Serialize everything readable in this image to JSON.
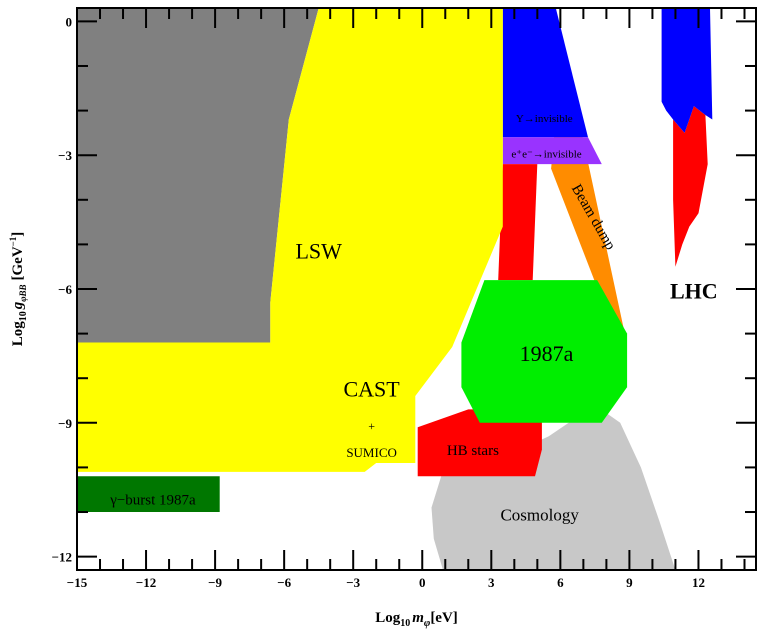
{
  "chart_data": {
    "type": "area",
    "title": "",
    "xlabel": "Log",
    "xlabel_sub": "10",
    "xlabel_var": "m",
    "xlabel_sym": "φ",
    "xlabel_unit": "[eV]",
    "ylabel": "Log",
    "ylabel_sub": "10",
    "ylabel_var": "g",
    "ylabel_sym": "φBB",
    "ylabel_unit": "[GeV",
    "ylabel_exp": "−1",
    "ylabel_close": "]",
    "xlim": [
      -15,
      14.5
    ],
    "ylim": [
      -12.3,
      0.3
    ],
    "xticks": [
      {
        "v": -15,
        "label": "−15"
      },
      {
        "v": -12,
        "label": "−12"
      },
      {
        "v": -9,
        "label": "−9"
      },
      {
        "v": -6,
        "label": "−6"
      },
      {
        "v": -3,
        "label": "−3"
      },
      {
        "v": 0,
        "label": "0"
      },
      {
        "v": 3,
        "label": "3"
      },
      {
        "v": 6,
        "label": "6"
      },
      {
        "v": 9,
        "label": "9"
      },
      {
        "v": 12,
        "label": "12"
      }
    ],
    "yticks": [
      {
        "v": 0,
        "label": "0"
      },
      {
        "v": -3,
        "label": "−3"
      },
      {
        "v": -6,
        "label": "−6"
      },
      {
        "v": -9,
        "label": "−9"
      },
      {
        "v": -12,
        "label": "−12"
      }
    ],
    "grid": false,
    "legend": "none",
    "regions": [
      {
        "id": "cosmology",
        "color": "#c8c8c8",
        "points": [
          [
            0.4,
            -10.9
          ],
          [
            1,
            -9.9
          ],
          [
            3,
            -9.9
          ],
          [
            5.5,
            -9.3
          ],
          [
            7.5,
            -8.6
          ],
          [
            8.6,
            -9.0
          ],
          [
            9.5,
            -10.0
          ],
          [
            10.3,
            -11.2
          ],
          [
            11.0,
            -12.3
          ],
          [
            0.9,
            -12.3
          ],
          [
            0.5,
            -11.6
          ]
        ]
      },
      {
        "id": "lsw",
        "color": "#808080",
        "points": [
          [
            -15,
            0.3
          ],
          [
            -4.5,
            0.3
          ],
          [
            -5.8,
            -2.2
          ],
          [
            -6.6,
            -6.3
          ],
          [
            -6.6,
            -7.2
          ],
          [
            -15,
            -7.2
          ]
        ]
      },
      {
        "id": "beam-dump",
        "color": "#ff8c00",
        "points": [
          [
            5.8,
            -2.2
          ],
          [
            6.8,
            -2.2
          ],
          [
            8.8,
            -7.0
          ],
          [
            8.6,
            -7.3
          ],
          [
            5.6,
            -3.3
          ]
        ]
      },
      {
        "id": "upsilon-invisible",
        "color": "#0000ff",
        "points": [
          [
            3.5,
            0.3
          ],
          [
            5.8,
            0.3
          ],
          [
            7.2,
            -2.6
          ],
          [
            3.5,
            -2.6
          ]
        ]
      },
      {
        "id": "ee-invisible",
        "color": "#9933ff",
        "points": [
          [
            3.5,
            -2.6
          ],
          [
            7.2,
            -2.6
          ],
          [
            7.8,
            -3.2
          ],
          [
            3.5,
            -3.2
          ]
        ]
      },
      {
        "id": "red-exclusion",
        "color": "#ff0000",
        "points": [
          [
            3.5,
            -3.2
          ],
          [
            5.0,
            -3.2
          ],
          [
            4.8,
            -5.8
          ],
          [
            3.3,
            -5.8
          ]
        ]
      },
      {
        "id": "hb-stars",
        "color": "#ff0000",
        "points": [
          [
            -0.2,
            -9.1
          ],
          [
            2.0,
            -8.7
          ],
          [
            5.2,
            -8.7
          ],
          [
            5.2,
            -9.6
          ],
          [
            4.9,
            -10.2
          ],
          [
            -0.2,
            -10.2
          ]
        ]
      },
      {
        "id": "cast-sumico",
        "color": "#ffff00",
        "points": [
          [
            -15,
            -7.2
          ],
          [
            -6.6,
            -7.2
          ],
          [
            -6.6,
            -6.3
          ],
          [
            -5.8,
            -2.2
          ],
          [
            -4.5,
            0.3
          ],
          [
            3.5,
            0.3
          ],
          [
            3.5,
            -4.6
          ],
          [
            1.3,
            -7.3
          ],
          [
            -0.3,
            -8.4
          ],
          [
            -0.3,
            -9.9
          ],
          [
            -2.0,
            -9.9
          ],
          [
            -2.5,
            -10.1
          ],
          [
            -15,
            -10.1
          ]
        ]
      },
      {
        "id": "sn1987a",
        "color": "#00ee00",
        "points": [
          [
            2.7,
            -5.8
          ],
          [
            7.6,
            -5.8
          ],
          [
            8.9,
            -7.0
          ],
          [
            8.9,
            -8.2
          ],
          [
            7.8,
            -9.0
          ],
          [
            2.5,
            -9.0
          ],
          [
            1.7,
            -8.2
          ],
          [
            1.7,
            -7.2
          ]
        ]
      },
      {
        "id": "lhc-red",
        "color": "#ff0000",
        "points": [
          [
            10.9,
            -2.2
          ],
          [
            11.4,
            -2.5
          ],
          [
            11.8,
            -1.9
          ],
          [
            12.3,
            -2.1
          ],
          [
            12.4,
            -3.2
          ],
          [
            12.0,
            -4.3
          ],
          [
            11.6,
            -4.6
          ],
          [
            11.3,
            -5.0
          ],
          [
            11.0,
            -5.5
          ],
          [
            10.9,
            -4.0
          ]
        ]
      },
      {
        "id": "lhc-blue",
        "color": "#0000ff",
        "points": [
          [
            10.4,
            0.3
          ],
          [
            11.0,
            0.3
          ],
          [
            11.5,
            0.3
          ],
          [
            12.5,
            0.3
          ],
          [
            12.6,
            -2.2
          ],
          [
            12.3,
            -2.1
          ],
          [
            11.8,
            -1.9
          ],
          [
            11.4,
            -2.5
          ],
          [
            10.9,
            -2.2
          ],
          [
            10.6,
            -2.0
          ],
          [
            10.4,
            -1.8
          ]
        ]
      },
      {
        "id": "gamma-burst",
        "color": "#007700",
        "points": [
          [
            -15,
            -10.2
          ],
          [
            -8.8,
            -10.2
          ],
          [
            -8.8,
            -11.0
          ],
          [
            -15,
            -11.0
          ]
        ]
      }
    ],
    "annotations": [
      {
        "id": "lsw",
        "text": "LSW",
        "x": -4.5,
        "y": -5.2,
        "size": 22
      },
      {
        "id": "cast",
        "text": "CAST",
        "x": -2.2,
        "y": -8.3,
        "size": 22
      },
      {
        "id": "plus",
        "text": "+",
        "x": -2.2,
        "y": -9.1,
        "size": 12
      },
      {
        "id": "sumico",
        "text": "SUMICO",
        "x": -2.2,
        "y": -9.7,
        "size": 13
      },
      {
        "id": "upsilon",
        "text": "Υ→invisible",
        "x": 5.3,
        "y": -2.2,
        "size": 11,
        "color": "#ffffff"
      },
      {
        "id": "ee",
        "text": "e⁺e⁻→invisible",
        "x": 5.4,
        "y": -3.0,
        "size": 11,
        "color": "#ffffff"
      },
      {
        "id": "beam-dump",
        "text": "Beam dump",
        "x": 7.4,
        "y": -4.4,
        "size": 15,
        "rotate": 60
      },
      {
        "id": "lhc",
        "text": "LHC",
        "x": 11.8,
        "y": -6.1,
        "size": 22,
        "bold": true
      },
      {
        "id": "sn1987a",
        "text": "1987a",
        "x": 5.4,
        "y": -7.5,
        "size": 22
      },
      {
        "id": "hb",
        "text": "HB stars",
        "x": 2.2,
        "y": -9.65,
        "size": 15,
        "color": "#ffffff"
      },
      {
        "id": "cosmology",
        "text": "Cosmology",
        "x": 5.1,
        "y": -11.1,
        "size": 17
      },
      {
        "id": "gamma",
        "text": "γ−burst 1987a",
        "x": -11.7,
        "y": -10.75,
        "size": 15,
        "color": "#ffffff"
      }
    ]
  }
}
